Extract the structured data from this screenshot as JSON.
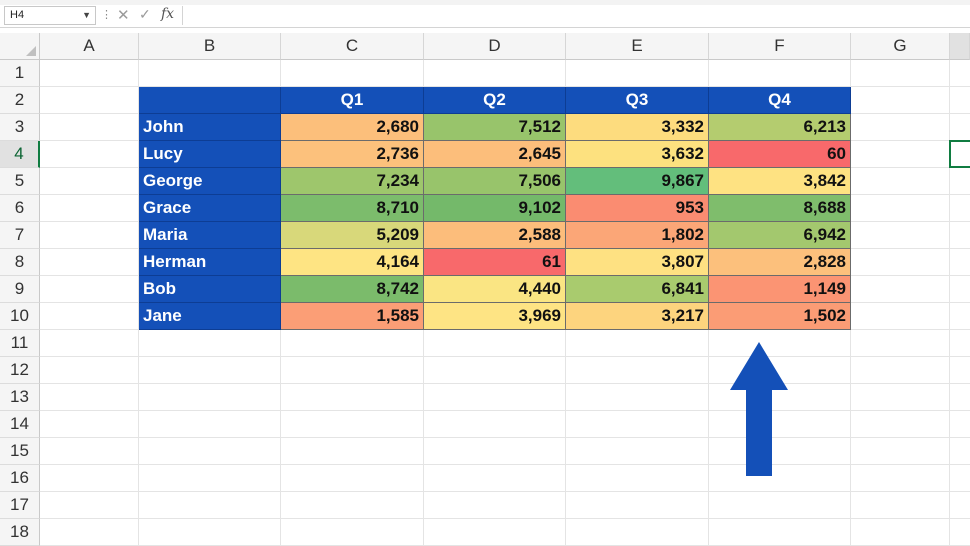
{
  "formula_bar": {
    "name_box": "H4",
    "fx_label": "fx",
    "cancel_symbol": "✕",
    "enter_symbol": "✓",
    "dots": "⋮",
    "formula": ""
  },
  "columns": [
    "A",
    "B",
    "C",
    "D",
    "E",
    "F",
    "G"
  ],
  "rows": [
    "1",
    "2",
    "3",
    "4",
    "5",
    "6",
    "7",
    "8",
    "9",
    "10",
    "11",
    "12",
    "13",
    "14",
    "15",
    "16",
    "17",
    "18"
  ],
  "active_cell": "H4",
  "table": {
    "headers": [
      "Q1",
      "Q2",
      "Q3",
      "Q4"
    ],
    "header_color": "#1450b8",
    "rows": [
      {
        "name": "John",
        "values": [
          "2,680",
          "7,512",
          "3,332",
          "6,213"
        ],
        "colors": [
          "#fcbf7b",
          "#98c46b",
          "#fddc7e",
          "#b4cc6f"
        ]
      },
      {
        "name": "Lucy",
        "values": [
          "2,736",
          "2,645",
          "3,632",
          "60"
        ],
        "colors": [
          "#fcc17c",
          "#fcbe7b",
          "#fde17f",
          "#f8696b"
        ]
      },
      {
        "name": "George",
        "values": [
          "7,234",
          "7,506",
          "9,867",
          "3,842"
        ],
        "colors": [
          "#9ec66c",
          "#98c46b",
          "#63be7b",
          "#fee282"
        ]
      },
      {
        "name": "Grace",
        "values": [
          "8,710",
          "9,102",
          "953",
          "8,688"
        ],
        "colors": [
          "#7cbc6c",
          "#74b96a",
          "#fa8c71",
          "#7fbd6c"
        ]
      },
      {
        "name": "Maria",
        "values": [
          "5,209",
          "2,588",
          "1,802",
          "6,942"
        ],
        "colors": [
          "#d8d87a",
          "#fcbd7b",
          "#fba677",
          "#a3c86e"
        ]
      },
      {
        "name": "Herman",
        "values": [
          "4,164",
          "61",
          "3,807",
          "2,828"
        ],
        "colors": [
          "#fee483",
          "#f8696b",
          "#fee182",
          "#fcc07c"
        ]
      },
      {
        "name": "Bob",
        "values": [
          "8,742",
          "4,440",
          "6,841",
          "1,149"
        ],
        "colors": [
          "#7bbb6b",
          "#fae583",
          "#a9cb6e",
          "#fb9473"
        ]
      },
      {
        "name": "Jane",
        "values": [
          "1,585",
          "3,969",
          "3,217",
          "1,502"
        ],
        "colors": [
          "#fb9e76",
          "#fee484",
          "#fdd47e",
          "#fb9c75"
        ]
      }
    ]
  },
  "arrow_color": "#1450b8"
}
